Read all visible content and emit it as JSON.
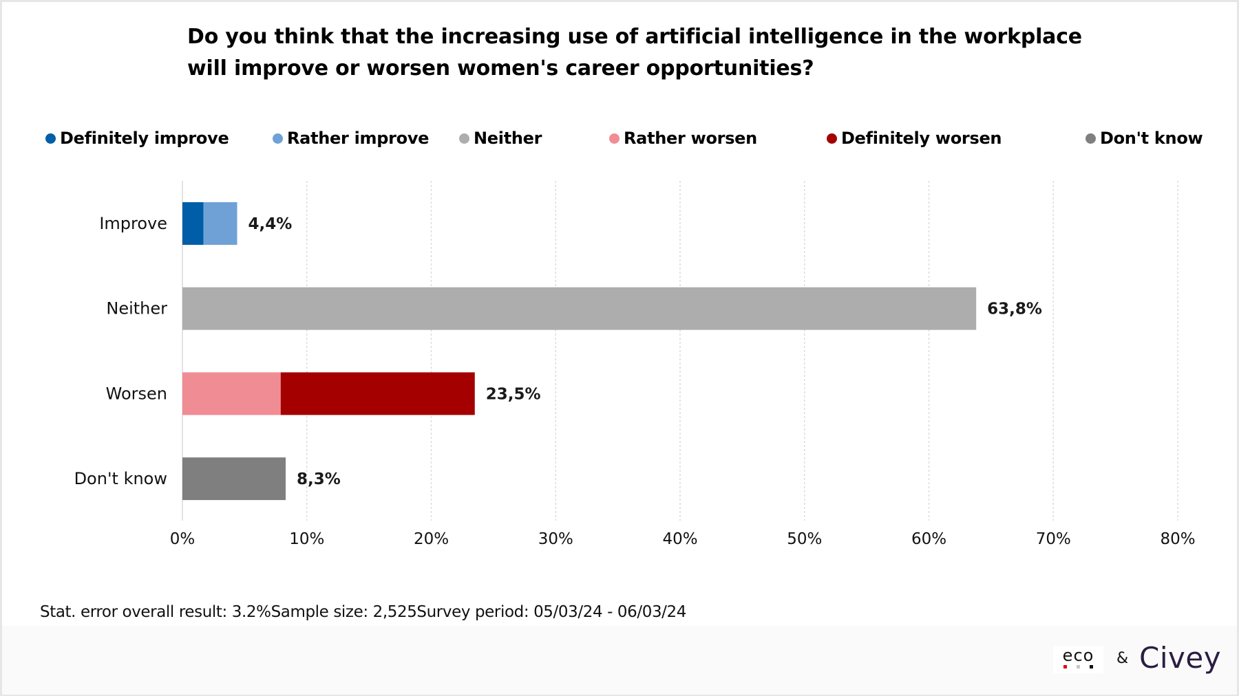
{
  "title": {
    "line1": "Do you think that the increasing use of artificial intelligence in the workplace",
    "line2": "will improve or worsen women's career opportunities?"
  },
  "legend": [
    {
      "label": "Definitely improve",
      "color": "#005ea8"
    },
    {
      "label": "Rather improve",
      "color": "#70a1d6"
    },
    {
      "label": "Neither",
      "color": "#adadad"
    },
    {
      "label": "Rather worsen",
      "color": "#f08c94"
    },
    {
      "label": "Definitely worsen",
      "color": "#a50000"
    },
    {
      "label": "Don't know",
      "color": "#7f7f7f"
    }
  ],
  "chart_data": {
    "type": "bar",
    "orientation": "horizontal",
    "stacked": true,
    "title": "Do you think that the increasing use of artificial intelligence in the workplace will improve or worsen women's career opportunities?",
    "categories": [
      "Improve",
      "Neither",
      "Worsen",
      "Don't know"
    ],
    "series": [
      {
        "name": "Definitely improve",
        "color": "#005ea8",
        "values": [
          1.7,
          0,
          0,
          0
        ]
      },
      {
        "name": "Rather improve",
        "color": "#70a1d6",
        "values": [
          2.7,
          0,
          0,
          0
        ]
      },
      {
        "name": "Neither",
        "color": "#adadad",
        "values": [
          0,
          63.8,
          0,
          0
        ]
      },
      {
        "name": "Rather worsen",
        "color": "#f08c94",
        "values": [
          0,
          0,
          7.9,
          0
        ]
      },
      {
        "name": "Definitely worsen",
        "color": "#a50000",
        "values": [
          0,
          0,
          15.6,
          0
        ]
      },
      {
        "name": "Don't know",
        "color": "#7f7f7f",
        "values": [
          0,
          0,
          0,
          8.3
        ]
      }
    ],
    "totals": [
      4.4,
      63.8,
      23.5,
      8.3
    ],
    "data_labels": [
      "4,4%",
      "63,8%",
      "23,5%",
      "8,3%"
    ],
    "xlim": [
      0,
      80
    ],
    "xticks": [
      0,
      10,
      20,
      30,
      40,
      50,
      60,
      70,
      80
    ],
    "xtick_labels": [
      "0%",
      "10%",
      "20%",
      "30%",
      "40%",
      "50%",
      "60%",
      "70%",
      "80%"
    ],
    "xlabel": "",
    "ylabel": "",
    "grid": "vertical dotted",
    "legend_position": "top"
  },
  "footnote": "Stat. error overall result: 3.2%Sample size: 2,525Survey period: 05/03/24 - 06/03/24",
  "logos": {
    "eco": "eco",
    "amp": "&",
    "civey": "Civey",
    "eco_dot_colors": [
      "#e30613",
      "#c8c8c8",
      "#111111"
    ],
    "civey_color": "#2b1d42"
  }
}
